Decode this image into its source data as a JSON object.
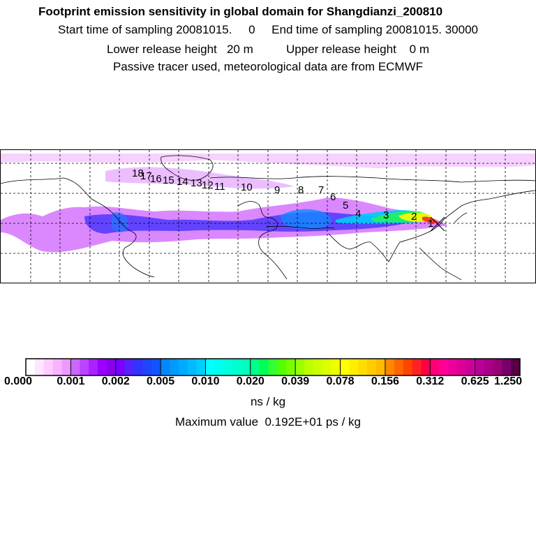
{
  "header": {
    "title": "Footprint emission sensitivity in global domain for Shangdianzi_200810",
    "line2": "Start time of sampling 20081015.     0     End time of sampling 20081015. 30000",
    "line3": "Lower release height   20 m          Upper release height    0 m",
    "line4": "Passive tracer used, meteorological data are from ECMWF"
  },
  "map": {
    "trajectory_labels": [
      "1",
      "2",
      "3",
      "4",
      "5",
      "6",
      "7",
      "8",
      "9",
      "10",
      "11",
      "12",
      "13",
      "14",
      "15",
      "16",
      "17",
      "18"
    ],
    "station_marker": "x-marker-icon",
    "colors": {
      "coastline": "#000000",
      "grid": "#000000",
      "plume_low": "#cc44ff",
      "plume_mid": "#2060ff",
      "plume_high": "#00e0a0"
    }
  },
  "colorbar": {
    "tick_labels": [
      "0.000",
      "0.001",
      "0.002",
      "0.005",
      "0.010",
      "0.020",
      "0.039",
      "0.078",
      "0.156",
      "0.312",
      "0.625",
      "1.250"
    ],
    "segments": [
      "#ffffff",
      "#ffe6ff",
      "#ffccff",
      "#f7b3ff",
      "#ee99ff",
      "#cc66ff",
      "#bb44ff",
      "#aa22ff",
      "#9900ff",
      "#8800ee",
      "#7700ff",
      "#5522ff",
      "#3333ff",
      "#2244ff",
      "#1155ff",
      "#0088ff",
      "#0099ff",
      "#00aaff",
      "#00bbff",
      "#00ccff",
      "#00ffff",
      "#00ffee",
      "#00ffdd",
      "#00ffcc",
      "#00ffbb",
      "#00ff88",
      "#00ff55",
      "#33ff33",
      "#55ff00",
      "#77ff00",
      "#99ff00",
      "#bbff00",
      "#ccff00",
      "#ddff00",
      "#eeff00",
      "#ffff00",
      "#ffee00",
      "#ffdd00",
      "#ffcc00",
      "#ffbb00",
      "#ff8800",
      "#ff6600",
      "#ff4400",
      "#ff2222",
      "#ff0044",
      "#ff0077",
      "#ff0099",
      "#ee0099",
      "#dd0099",
      "#cc0099",
      "#bb0099",
      "#aa0088",
      "#990077",
      "#770066",
      "#550044"
    ],
    "unit": "ns / kg",
    "max_value": "Maximum value  0.192E+01 ps / kg"
  }
}
